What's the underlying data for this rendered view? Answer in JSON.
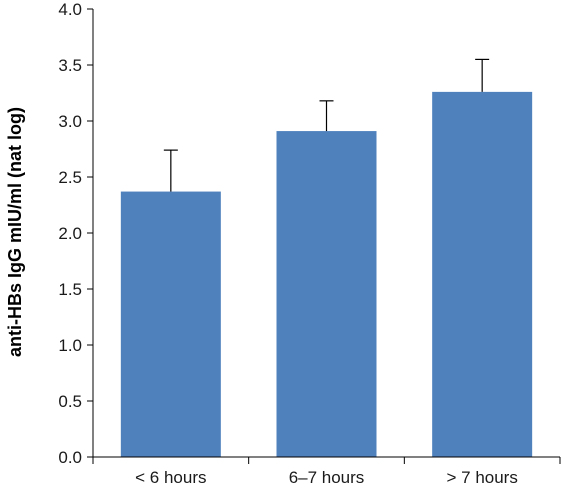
{
  "chart_data": {
    "type": "bar",
    "categories": [
      "< 6 hours",
      "6–7 hours",
      "> 7 hours"
    ],
    "values": [
      2.37,
      2.91,
      3.26
    ],
    "error_upper": [
      2.74,
      3.18,
      3.55
    ],
    "title": "",
    "xlabel": "",
    "ylabel": "anti-HBs IgG mIU/ml (nat log)",
    "ylim": [
      0.0,
      4.0
    ],
    "yticks": [
      "0.0",
      "0.5",
      "1.0",
      "1.5",
      "2.0",
      "2.5",
      "3.0",
      "3.5",
      "4.0"
    ],
    "grid": false,
    "legend": "none",
    "bar_color": "#4f81bd"
  }
}
